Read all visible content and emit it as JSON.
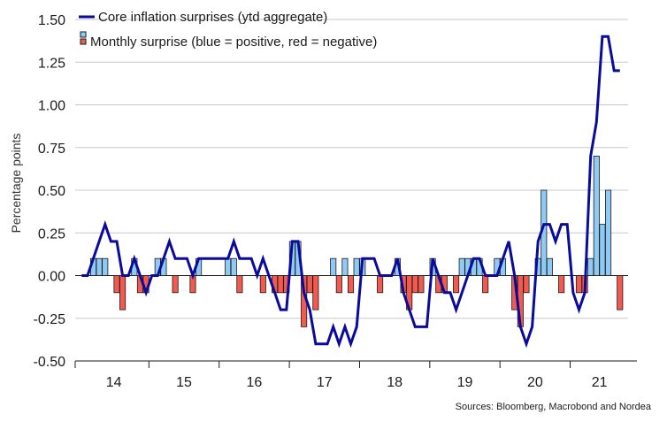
{
  "chart_data": {
    "type": "bar+line",
    "ylabel": "Percentage points",
    "ylim": [
      -0.5,
      1.5
    ],
    "yticks": [
      1.5,
      1.25,
      1.0,
      0.75,
      0.5,
      0.25,
      0.0,
      -0.25,
      -0.5
    ],
    "ytick_labels": [
      "1.50",
      "1.25",
      "1.00",
      "0.75",
      "0.50",
      "0.25",
      "0.00",
      "-0.25",
      "-0.50"
    ],
    "x_start": "2014-01",
    "x_end": "2021-05",
    "year_labels": [
      "14",
      "15",
      "16",
      "17",
      "18",
      "19",
      "20",
      "21"
    ],
    "grid": true,
    "legend_position": "top-left",
    "legend": {
      "line_label": "Core inflation surprises (ytd aggregate)",
      "bar_label": "Monthly surprise (blue = positive, red = negative)"
    },
    "colors": {
      "line": "#0a0a9c",
      "positive": "#8ecaf4",
      "negative": "#f05a4f",
      "bar_edge": "#1a1a1a"
    },
    "source": "Sources: Bloomberg, Macrobond and Nordea",
    "series": [
      {
        "name": "Core inflation surprises (ytd aggregate)",
        "type": "line",
        "values": [
          0.0,
          0.0,
          0.1,
          0.2,
          0.3,
          0.2,
          0.2,
          0.0,
          0.0,
          0.1,
          0.0,
          -0.1,
          0.0,
          0.0,
          0.1,
          0.2,
          0.1,
          0.1,
          0.1,
          0.0,
          0.1,
          0.1,
          0.1,
          0.1,
          0.1,
          0.1,
          0.2,
          0.1,
          0.1,
          0.1,
          0.0,
          0.1,
          0.0,
          -0.1,
          -0.2,
          -0.2,
          0.2,
          0.2,
          -0.1,
          -0.2,
          -0.4,
          -0.4,
          -0.4,
          -0.3,
          -0.4,
          -0.3,
          -0.4,
          -0.3,
          0.1,
          0.1,
          0.1,
          0.0,
          0.0,
          0.0,
          0.1,
          -0.1,
          -0.2,
          -0.3,
          -0.3,
          -0.3,
          0.1,
          0.0,
          -0.1,
          -0.1,
          -0.2,
          -0.1,
          0.0,
          0.1,
          0.1,
          0.0,
          0.0,
          0.0,
          0.1,
          0.2,
          0.0,
          -0.3,
          -0.4,
          -0.3,
          0.2,
          0.3,
          0.3,
          0.2,
          0.3,
          0.3,
          -0.1,
          -0.2,
          -0.1,
          0.7,
          0.9,
          1.4,
          1.4,
          1.2,
          1.2
        ]
      },
      {
        "name": "Monthly surprise (blue = positive, red = negative)",
        "type": "bar",
        "values": [
          0.0,
          0.0,
          0.1,
          0.1,
          0.1,
          0.0,
          -0.1,
          -0.2,
          0.0,
          0.1,
          -0.1,
          -0.1,
          0.0,
          0.1,
          0.1,
          0.0,
          -0.1,
          0.0,
          0.0,
          -0.1,
          0.1,
          0.0,
          0.0,
          0.0,
          0.0,
          0.1,
          0.1,
          -0.1,
          0.0,
          0.0,
          0.0,
          -0.1,
          0.0,
          -0.1,
          -0.1,
          -0.1,
          0.2,
          0.2,
          -0.3,
          -0.1,
          -0.2,
          0.0,
          0.0,
          0.1,
          -0.1,
          0.1,
          -0.1,
          0.1,
          0.1,
          0.0,
          0.0,
          -0.1,
          0.0,
          0.0,
          0.1,
          -0.1,
          -0.2,
          -0.1,
          -0.1,
          0.0,
          0.1,
          -0.1,
          -0.1,
          0.0,
          -0.1,
          0.1,
          0.1,
          0.1,
          0.1,
          -0.1,
          0.0,
          0.1,
          0.1,
          0.0,
          -0.2,
          -0.3,
          -0.1,
          0.0,
          0.1,
          0.5,
          0.1,
          0.0,
          -0.1,
          0.0,
          0.0,
          -0.1,
          -0.1,
          0.1,
          0.7,
          0.3,
          0.5,
          0.0,
          -0.2
        ]
      }
    ]
  }
}
